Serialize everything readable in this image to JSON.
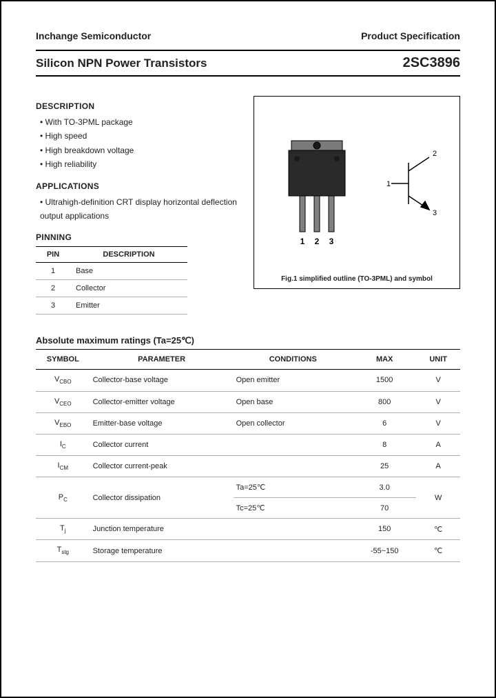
{
  "header": {
    "company": "Inchange Semiconductor",
    "docType": "Product Specification",
    "title": "Silicon NPN Power Transistors",
    "partNumber": "2SC3896"
  },
  "description": {
    "heading": "DESCRIPTION",
    "items": [
      "With TO-3PML package",
      "High speed",
      "High breakdown voltage",
      "High reliability"
    ]
  },
  "applications": {
    "heading": "APPLICATIONS",
    "items": [
      "Ultrahigh-definition CRT display horizontal deflection output applications"
    ]
  },
  "pinning": {
    "heading": "PINNING",
    "columns": [
      "PIN",
      "DESCRIPTION"
    ],
    "rows": [
      [
        "1",
        "Base"
      ],
      [
        "2",
        "Collector"
      ],
      [
        "3",
        "Emitter"
      ]
    ]
  },
  "figure": {
    "caption": "Fig.1 simplified outline (TO-3PML) and symbol",
    "pinLabels": [
      "1",
      "2",
      "3"
    ],
    "symbolLabels": [
      "1",
      "2",
      "3"
    ],
    "colors": {
      "pkgBody": "#2a2a2a",
      "pkgTab": "#7a7a7a",
      "lead": "#808080",
      "stroke": "#000000"
    }
  },
  "ratings": {
    "heading": "Absolute maximum ratings (Ta=25℃)",
    "columns": [
      "SYMBOL",
      "PARAMETER",
      "CONDITIONS",
      "MAX",
      "UNIT"
    ],
    "rows": [
      {
        "symbol": "V",
        "sub": "CBO",
        "param": "Collector-base voltage",
        "cond": "Open emitter",
        "max": "1500",
        "unit": "V",
        "rowspan": 1
      },
      {
        "symbol": "V",
        "sub": "CEO",
        "param": "Collector-emitter voltage",
        "cond": "Open base",
        "max": "800",
        "unit": "V",
        "rowspan": 1
      },
      {
        "symbol": "V",
        "sub": "EBO",
        "param": "Emitter-base voltage",
        "cond": "Open collector",
        "max": "6",
        "unit": "V",
        "rowspan": 1
      },
      {
        "symbol": "I",
        "sub": "C",
        "param": "Collector current",
        "cond": "",
        "max": "8",
        "unit": "A",
        "rowspan": 1
      },
      {
        "symbol": "I",
        "sub": "CM",
        "param": "Collector current-peak",
        "cond": "",
        "max": "25",
        "unit": "A",
        "rowspan": 1
      },
      {
        "symbol": "P",
        "sub": "C",
        "param": "Collector dissipation",
        "cond": "Ta=25℃",
        "max": "3.0",
        "unit": "W",
        "rowspan": 2
      },
      {
        "symbol": "",
        "sub": "",
        "param": "",
        "cond": "Tc=25℃",
        "max": "70",
        "unit": "",
        "rowspan": 0
      },
      {
        "symbol": "T",
        "sub": "j",
        "param": "Junction temperature",
        "cond": "",
        "max": "150",
        "unit": "℃",
        "rowspan": 1
      },
      {
        "symbol": "T",
        "sub": "stg",
        "param": "Storage temperature",
        "cond": "",
        "max": "-55~150",
        "unit": "℃",
        "rowspan": 1
      }
    ]
  }
}
